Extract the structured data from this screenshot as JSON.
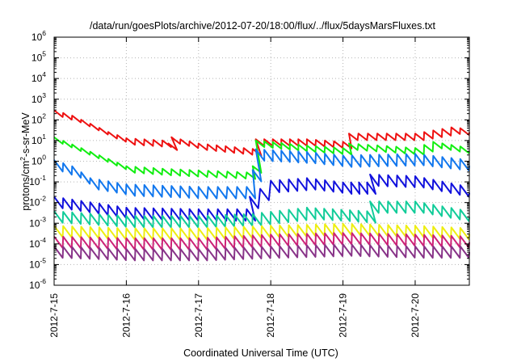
{
  "chart_data": {
    "type": "line",
    "title": "/data/run/goesPlots/archive/2012-07-20/18:00/flux/../flux/5daysMarsFluxes.txt",
    "xlabel": "Coordinated Universal Time (UTC)",
    "ylabel": {
      "prefix": "protons/cm",
      "superscript": "2",
      "suffix": "-s-sr-MeV"
    },
    "yscale": "log",
    "ylim": [
      1e-06,
      1000000.0
    ],
    "y_ticks": [
      {
        "base": "10",
        "exp": "-6"
      },
      {
        "base": "10",
        "exp": "-5"
      },
      {
        "base": "10",
        "exp": "-4"
      },
      {
        "base": "10",
        "exp": "-3"
      },
      {
        "base": "10",
        "exp": "-2"
      },
      {
        "base": "10",
        "exp": "-1"
      },
      {
        "base": "10",
        "exp": "0"
      },
      {
        "base": "10",
        "exp": "1"
      },
      {
        "base": "10",
        "exp": "2"
      },
      {
        "base": "10",
        "exp": "3"
      },
      {
        "base": "10",
        "exp": "4"
      },
      {
        "base": "10",
        "exp": "5"
      },
      {
        "base": "10",
        "exp": "6"
      }
    ],
    "xlim": [
      "2012-07-15",
      "2012-07-20T18:00"
    ],
    "x_ticks": [
      "2012-7-15",
      "2012-7-16",
      "2012-7-17",
      "2012-7-18",
      "2012-7-19",
      "2012-7-20"
    ],
    "grid": true,
    "series": [
      {
        "color": "#ee1111",
        "values": [
          [
            "2012-07-15T00:00",
            200
          ],
          [
            "2012-07-15T06:00",
            110
          ],
          [
            "2012-07-15T12:00",
            45
          ],
          [
            "2012-07-15T18:00",
            18
          ],
          [
            "2012-07-16T00:00",
            9
          ],
          [
            "2012-07-16T12:00",
            7
          ],
          [
            "2012-07-16T14:00",
            5
          ],
          [
            "2012-07-16T15:00",
            10
          ],
          [
            "2012-07-17T00:00",
            5
          ],
          [
            "2012-07-17T18:00",
            2.7
          ],
          [
            "2012-07-17T19:00",
            8
          ],
          [
            "2012-07-18T12:00",
            8
          ],
          [
            "2012-07-19T00:00",
            6
          ],
          [
            "2012-07-19T02:00",
            15
          ],
          [
            "2012-07-20T00:00",
            15
          ],
          [
            "2012-07-20T12:00",
            30
          ],
          [
            "2012-07-20T18:00",
            25
          ]
        ]
      },
      {
        "color": "#11ee11",
        "values": [
          [
            "2012-07-15T00:00",
            10
          ],
          [
            "2012-07-15T12:00",
            2
          ],
          [
            "2012-07-16T00:00",
            0.4
          ],
          [
            "2012-07-16T12:00",
            0.3
          ],
          [
            "2012-07-17T00:00",
            0.25
          ],
          [
            "2012-07-17T16:00",
            0.2
          ],
          [
            "2012-07-17T18:00",
            0.4
          ],
          [
            "2012-07-17T19:00",
            7
          ],
          [
            "2012-07-18T12:00",
            4
          ],
          [
            "2012-07-19T00:00",
            3
          ],
          [
            "2012-07-19T02:00",
            5
          ],
          [
            "2012-07-20T00:00",
            3
          ],
          [
            "2012-07-20T06:00",
            6
          ],
          [
            "2012-07-20T18:00",
            3
          ]
        ]
      },
      {
        "color": "#1177ee",
        "values": [
          [
            "2012-07-15T00:00",
            0.6
          ],
          [
            "2012-07-15T06:00",
            0.3
          ],
          [
            "2012-07-15T12:00",
            0.08
          ],
          [
            "2012-07-16T00:00",
            0.04
          ],
          [
            "2012-07-17T00:00",
            0.03
          ],
          [
            "2012-07-17T16:00",
            0.03
          ],
          [
            "2012-07-17T18:00",
            0.2
          ],
          [
            "2012-07-17T19:00",
            2
          ],
          [
            "2012-07-18T12:00",
            1.5
          ],
          [
            "2012-07-19T00:00",
            1
          ],
          [
            "2012-07-20T00:00",
            1.2
          ],
          [
            "2012-07-20T18:00",
            0.6
          ]
        ]
      },
      {
        "color": "#1111dd",
        "values": [
          [
            "2012-07-15T00:00",
            0.01
          ],
          [
            "2012-07-16T00:00",
            0.003
          ],
          [
            "2012-07-17T00:00",
            0.0025
          ],
          [
            "2012-07-17T16:00",
            0.0025
          ],
          [
            "2012-07-17T17:00",
            0.01
          ],
          [
            "2012-07-18T00:00",
            0.06
          ],
          [
            "2012-07-18T12:00",
            0.08
          ],
          [
            "2012-07-19T00:00",
            0.05
          ],
          [
            "2012-07-19T08:00",
            0.05
          ],
          [
            "2012-07-19T09:00",
            0.12
          ],
          [
            "2012-07-20T00:00",
            0.1
          ],
          [
            "2012-07-20T18:00",
            0.03
          ]
        ]
      },
      {
        "color": "#11cc99",
        "values": [
          [
            "2012-07-15T00:00",
            0.002
          ],
          [
            "2012-07-16T00:00",
            0.0012
          ],
          [
            "2012-07-17T00:00",
            0.0012
          ],
          [
            "2012-07-17T18:00",
            0.0015
          ],
          [
            "2012-07-18T12:00",
            0.003
          ],
          [
            "2012-07-19T08:00",
            0.002
          ],
          [
            "2012-07-19T09:00",
            0.006
          ],
          [
            "2012-07-20T00:00",
            0.006
          ],
          [
            "2012-07-20T18:00",
            0.002
          ]
        ]
      },
      {
        "color": "#eeee11",
        "values": [
          [
            "2012-07-15T00:00",
            0.0004
          ],
          [
            "2012-07-16T00:00",
            0.0003
          ],
          [
            "2012-07-17T00:00",
            0.0003
          ],
          [
            "2012-07-18T00:00",
            0.0004
          ],
          [
            "2012-07-19T00:00",
            0.0005
          ],
          [
            "2012-07-20T00:00",
            0.0004
          ],
          [
            "2012-07-20T18:00",
            0.0003
          ]
        ]
      },
      {
        "color": "#cc2277",
        "values": [
          [
            "2012-07-15T00:00",
            0.00012
          ],
          [
            "2012-07-16T00:00",
            0.0001
          ],
          [
            "2012-07-17T00:00",
            0.0001
          ],
          [
            "2012-07-18T00:00",
            0.00015
          ],
          [
            "2012-07-19T00:00",
            0.00018
          ],
          [
            "2012-07-20T00:00",
            0.00015
          ],
          [
            "2012-07-20T18:00",
            0.00012
          ]
        ]
      },
      {
        "color": "#883388",
        "values": [
          [
            "2012-07-15T00:00",
            4e-05
          ],
          [
            "2012-07-16T00:00",
            3e-05
          ],
          [
            "2012-07-17T00:00",
            3e-05
          ],
          [
            "2012-07-18T00:00",
            4e-05
          ],
          [
            "2012-07-19T00:00",
            5e-05
          ],
          [
            "2012-07-20T00:00",
            4e-05
          ],
          [
            "2012-07-20T18:00",
            4e-05
          ]
        ]
      }
    ]
  }
}
